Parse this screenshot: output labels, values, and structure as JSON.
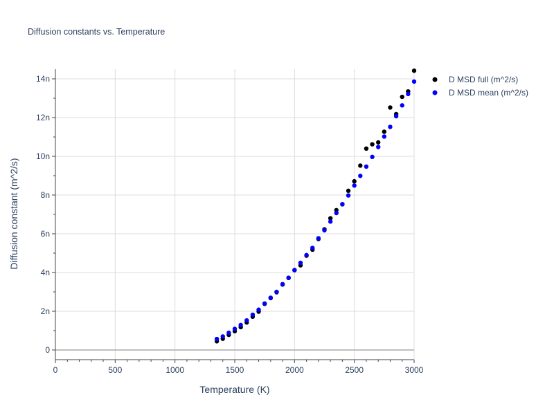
{
  "chart_data": {
    "type": "scatter",
    "title": "Diffusion constants vs. Temperature",
    "xlabel": "Temperature (K)",
    "ylabel": "Diffusion constant (m^2/s)",
    "xlim": [
      0,
      3000
    ],
    "ylim": [
      -5e-10,
      1.45e-08
    ],
    "x_ticks": [
      0,
      500,
      1000,
      1500,
      2000,
      2500,
      3000
    ],
    "x_tick_labels": [
      "0",
      "500",
      "1000",
      "1500",
      "2000",
      "2500",
      "3000"
    ],
    "y_ticks": [
      0,
      2e-09,
      4e-09,
      6e-09,
      8e-09,
      1e-08,
      1.2e-08,
      1.4e-08
    ],
    "y_tick_labels": [
      "0",
      "2n",
      "4n",
      "6n",
      "8n",
      "10n",
      "12n",
      "14n"
    ],
    "grid": true,
    "legend_position": "top-right",
    "x": [
      1350,
      1400,
      1450,
      1500,
      1550,
      1600,
      1650,
      1700,
      1750,
      1800,
      1850,
      1900,
      1950,
      2000,
      2050,
      2100,
      2150,
      2200,
      2250,
      2300,
      2350,
      2400,
      2450,
      2500,
      2550,
      2600,
      2650,
      2700,
      2750,
      2800,
      2850,
      2900,
      2950,
      3000
    ],
    "series": [
      {
        "name": "D MSD full (m^2/s)",
        "color": "#000000",
        "values": [
          4.5e-10,
          5.8e-10,
          7.8e-10,
          9.7e-10,
          1.18e-09,
          1.42e-09,
          1.72e-09,
          1.98e-09,
          2.38e-09,
          2.68e-09,
          2.98e-09,
          3.38e-09,
          3.72e-09,
          4.12e-09,
          4.37e-09,
          4.87e-09,
          5.18e-09,
          5.73e-09,
          6.23e-09,
          6.8e-09,
          7.22e-09,
          7.52e-09,
          8.22e-09,
          8.71e-09,
          9.52e-09,
          1.04e-08,
          1.062e-08,
          1.072e-08,
          1.127e-08,
          1.252e-08,
          1.218e-08,
          1.307e-08,
          1.335e-08,
          1.442e-08
        ]
      },
      {
        "name": "D MSD mean (m^2/s)",
        "color": "#0000ff",
        "values": [
          5.7e-10,
          7e-10,
          8.9e-10,
          1.09e-09,
          1.29e-09,
          1.53e-09,
          1.82e-09,
          2.08e-09,
          2.4e-09,
          2.7e-09,
          3e-09,
          3.4e-09,
          3.73e-09,
          4.13e-09,
          4.5e-09,
          4.9e-09,
          5.27e-09,
          5.77e-09,
          6.18e-09,
          6.63e-09,
          7.07e-09,
          7.53e-09,
          7.98e-09,
          8.49e-09,
          8.99e-09,
          9.47e-09,
          9.97e-09,
          1.048e-08,
          1.102e-08,
          1.152e-08,
          1.207e-08,
          1.263e-08,
          1.322e-08,
          1.386e-08
        ]
      }
    ]
  }
}
